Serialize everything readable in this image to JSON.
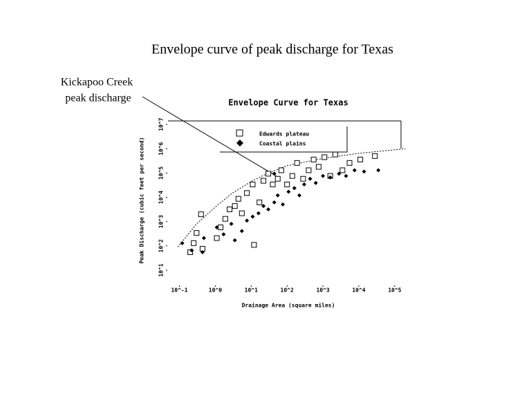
{
  "title": "Envelope curve of peak discharge for Texas",
  "annotation": [
    "Kickapoo Creek",
    "peak discharge"
  ],
  "chart_data": {
    "type": "scatter",
    "title": "Envelope Curve for Texas",
    "xlabel": "Drainage Area (square miles)",
    "ylabel": "Peak Discharge (cubic feet per second)",
    "xscale": "log",
    "yscale": "log",
    "xlim": [
      0.06,
      150000
    ],
    "ylim": [
      4,
      14000000
    ],
    "xticks": [
      {
        "value": 0.1,
        "label": "10^-1"
      },
      {
        "value": 1,
        "label": "10^0"
      },
      {
        "value": 10,
        "label": "10^1"
      },
      {
        "value": 100,
        "label": "10^2"
      },
      {
        "value": 1000,
        "label": "10^3"
      },
      {
        "value": 10000,
        "label": "10^4"
      },
      {
        "value": 100000,
        "label": "10^5"
      }
    ],
    "yticks": [
      {
        "value": 10,
        "label": "10^1"
      },
      {
        "value": 100,
        "label": "10^2"
      },
      {
        "value": 1000,
        "label": "10^3"
      },
      {
        "value": 10000,
        "label": "10^4"
      },
      {
        "value": 100000,
        "label": "10^5"
      },
      {
        "value": 1000000,
        "label": "10^6"
      },
      {
        "value": 10000000,
        "label": "10^7"
      }
    ],
    "series": [
      {
        "name": "Edwards plateau",
        "color": "#000000",
        "marker": "square",
        "x": [
          0.2,
          0.25,
          0.3,
          0.4,
          0.44,
          1.1,
          1.4,
          1.9,
          2.5,
          3.5,
          4.4,
          5.5,
          7.6,
          11,
          12,
          17,
          22,
          30,
          40,
          55,
          69,
          100,
          140,
          190,
          280,
          400,
          550,
          760,
          1100,
          1600,
          2200,
          3500,
          5500,
          11000,
          28000
        ],
        "values": [
          55,
          130,
          340,
          2000,
          76,
          210,
          580,
          1300,
          3200,
          4400,
          8700,
          2200,
          15000,
          34000,
          110,
          6200,
          48000,
          94000,
          34000,
          58000,
          130000,
          34000,
          76000,
          260000,
          58000,
          130000,
          360000,
          180000,
          450000,
          76000,
          580000,
          130000,
          260000,
          360000,
          500000
        ]
      },
      {
        "name": "Coastal plains",
        "color": "#000000",
        "marker": "diamond",
        "x": [
          0.12,
          0.22,
          0.44,
          0.48,
          1.1,
          1.7,
          2.8,
          3.5,
          5.5,
          7.6,
          11,
          16,
          22,
          30,
          44,
          55,
          76,
          110,
          160,
          220,
          300,
          440,
          630,
          1000,
          1600,
          2800,
          4400,
          7600,
          14000,
          35000,
          44
        ],
        "values": [
          130,
          66,
          55,
          210,
          580,
          300,
          810,
          170,
          410,
          1100,
          1600,
          2200,
          4400,
          3200,
          6200,
          12000,
          5100,
          17000,
          24000,
          12000,
          34000,
          58000,
          39000,
          76000,
          66000,
          94000,
          76000,
          130000,
          115000,
          130000,
          94000
        ]
      }
    ],
    "envelope": {
      "x": [
        0.09,
        0.3,
        1,
        3,
        10,
        30,
        100,
        1000,
        10000,
        200000
      ],
      "y": [
        90,
        800,
        4000,
        15000,
        45000,
        100000,
        200000,
        400000,
        650000,
        1000000
      ]
    }
  }
}
